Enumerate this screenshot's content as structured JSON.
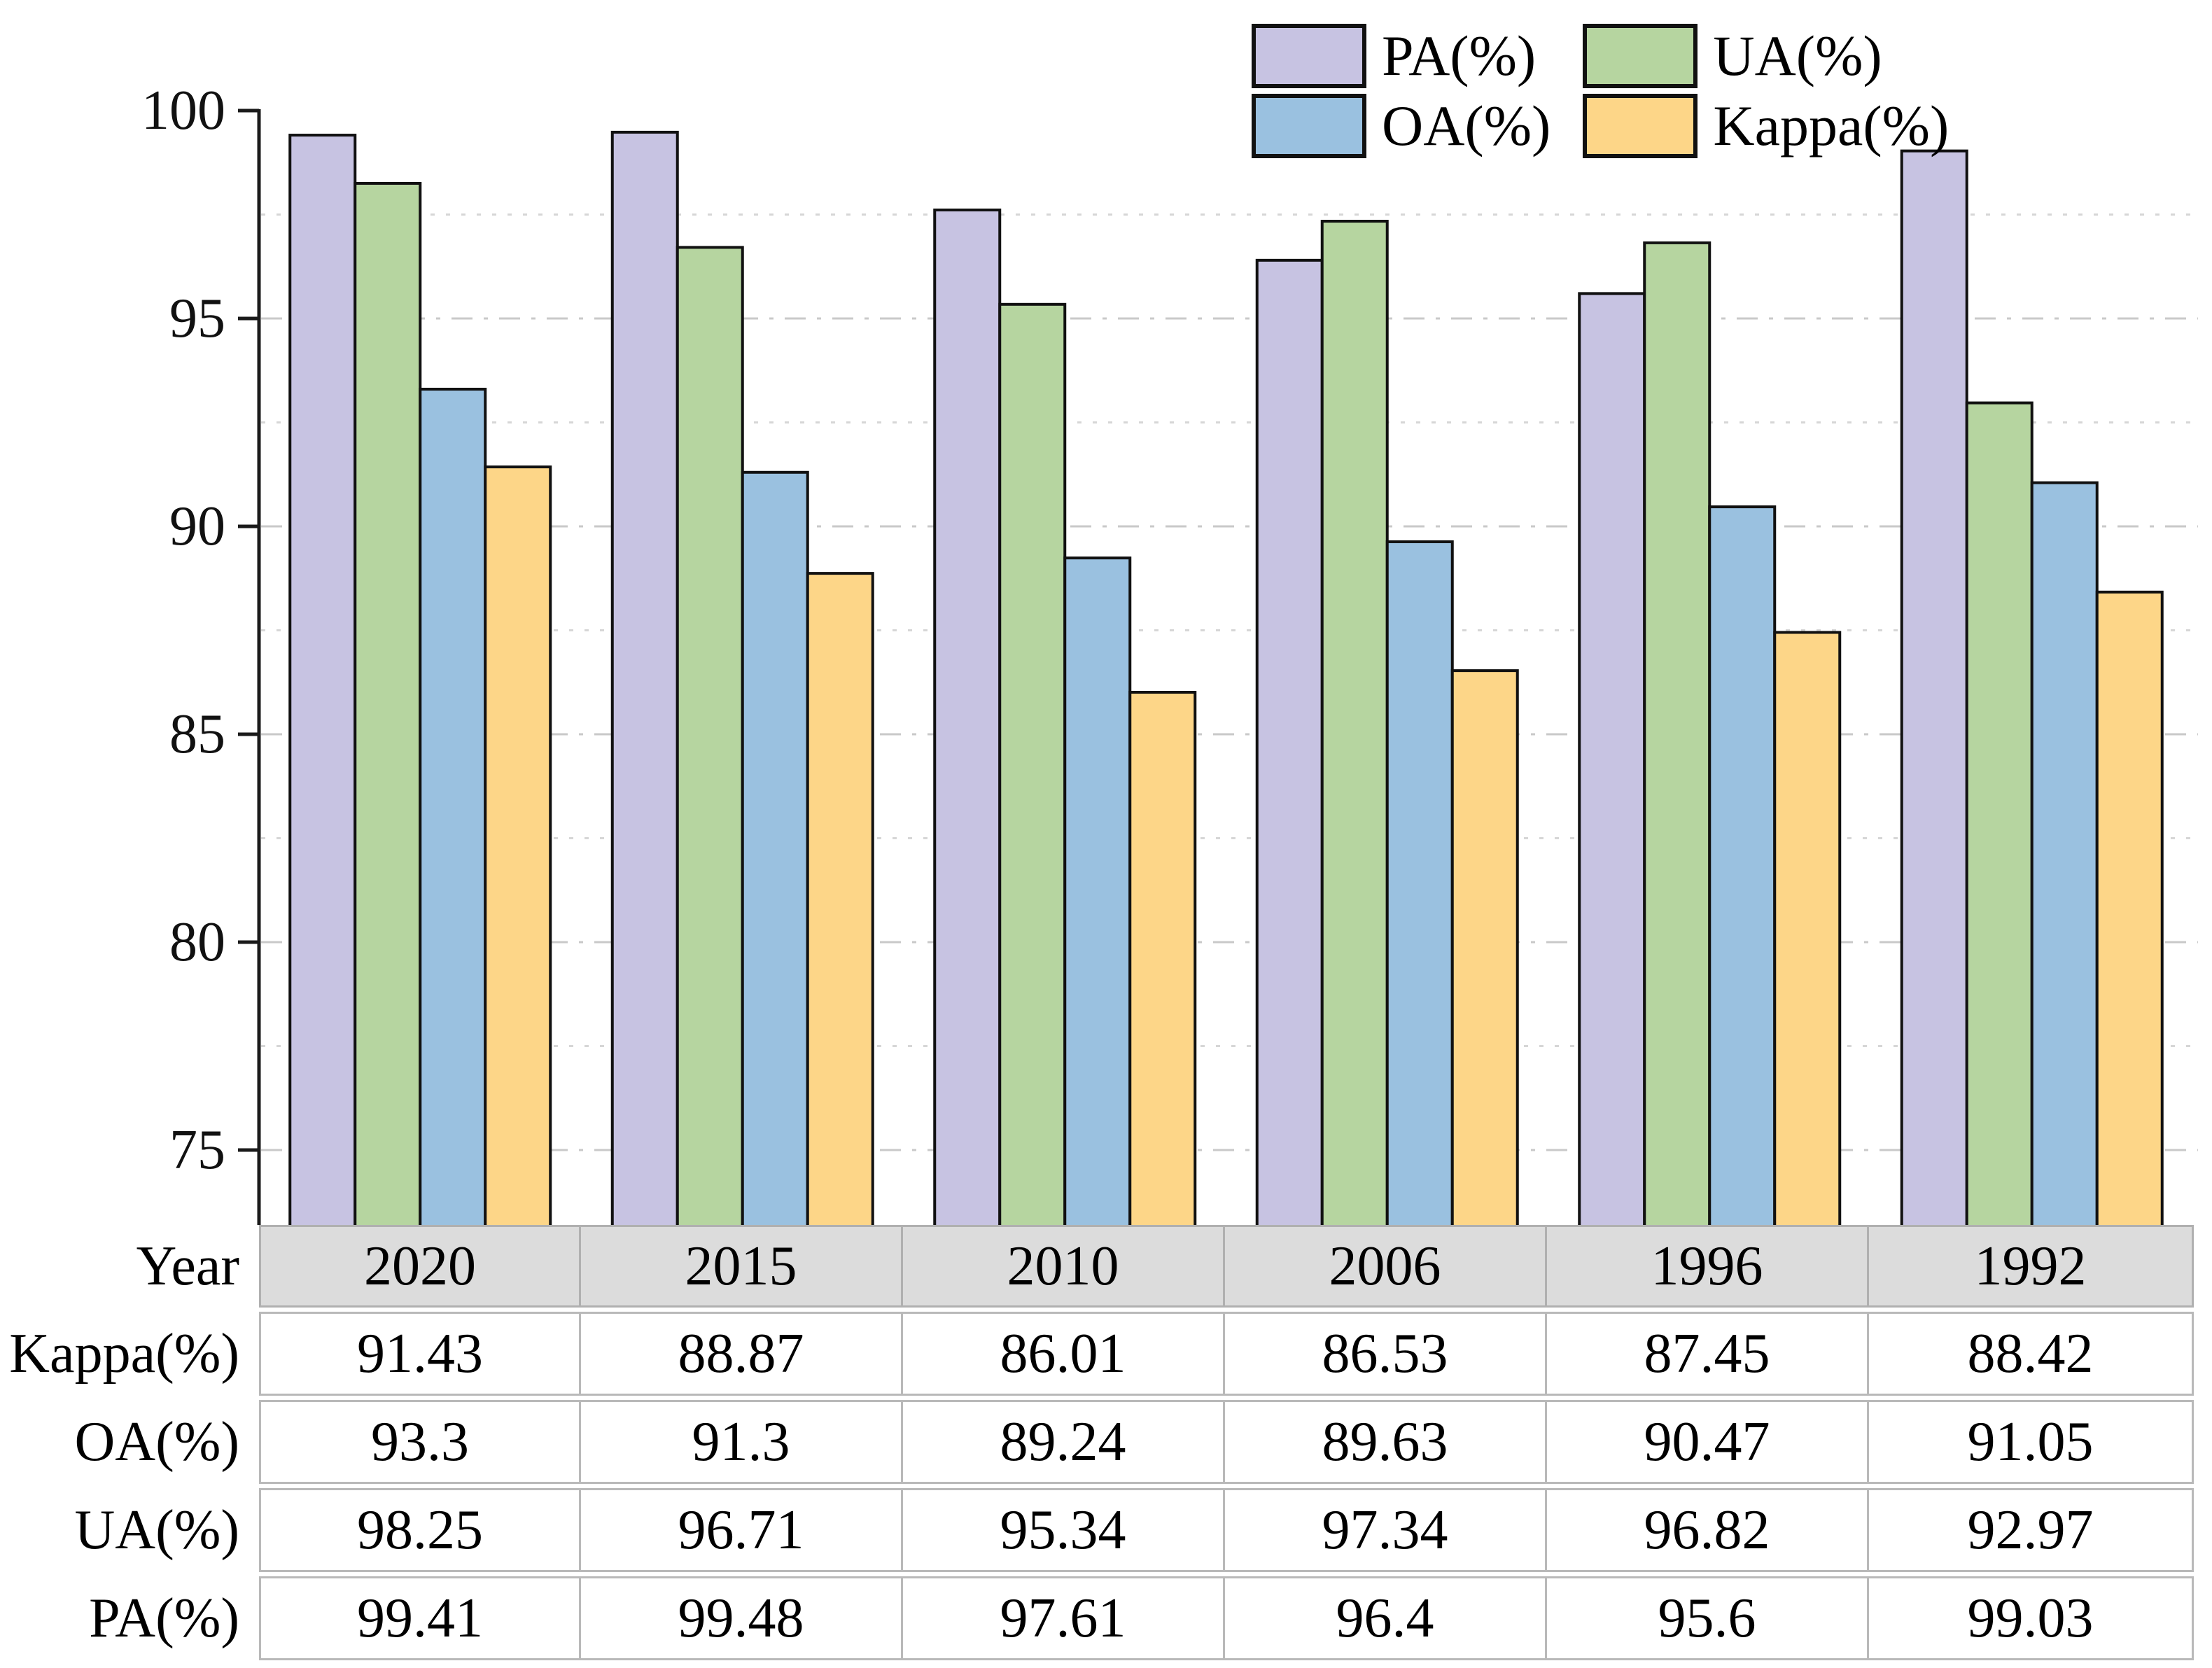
{
  "chart_data": {
    "type": "bar",
    "categories": [
      "2020",
      "2015",
      "2010",
      "2006",
      "1996",
      "1992"
    ],
    "series": [
      {
        "name": "PA(%)",
        "color": "#c7c3e2",
        "values": [
          99.41,
          99.48,
          97.61,
          96.4,
          95.6,
          99.03
        ]
      },
      {
        "name": "UA(%)",
        "color": "#b6d5a0",
        "values": [
          98.25,
          96.71,
          95.34,
          97.34,
          96.82,
          92.97
        ]
      },
      {
        "name": "OA(%)",
        "color": "#9ac1e0",
        "values": [
          93.3,
          91.3,
          89.24,
          89.63,
          90.47,
          91.05
        ]
      },
      {
        "name": "Kappa(%)",
        "color": "#fdd688",
        "values": [
          91.43,
          88.87,
          86.01,
          86.53,
          87.45,
          88.42
        ]
      }
    ],
    "title": "",
    "xlabel": "Year",
    "ylabel": "",
    "ylim": [
      73.2,
      100
    ],
    "yticks": [
      75,
      80,
      85,
      90,
      95,
      100
    ],
    "grid": "horizontal dashed lines every 2.5 units",
    "legend_position": "top-right",
    "bar_border_color": "#111111",
    "axis_color": "#1a1a1a"
  },
  "table": {
    "corner_label": "Year",
    "years": [
      "2020",
      "2015",
      "2010",
      "2006",
      "1996",
      "1992"
    ],
    "rows": [
      {
        "label": "Kappa(%)",
        "values": [
          "91.43",
          "88.87",
          "86.01",
          "86.53",
          "87.45",
          "88.42"
        ]
      },
      {
        "label": "OA(%)",
        "values": [
          "93.3",
          "91.3",
          "89.24",
          "89.63",
          "90.47",
          "91.05"
        ]
      },
      {
        "label": "UA(%)",
        "values": [
          "98.25",
          "96.71",
          "95.34",
          "97.34",
          "96.82",
          "92.97"
        ]
      },
      {
        "label": "PA(%)",
        "values": [
          "99.41",
          "99.48",
          "97.61",
          "96.4",
          "95.6",
          "99.03"
        ]
      }
    ],
    "header_bg": "#dcdcdc",
    "border_color": "#b0b0b0"
  }
}
